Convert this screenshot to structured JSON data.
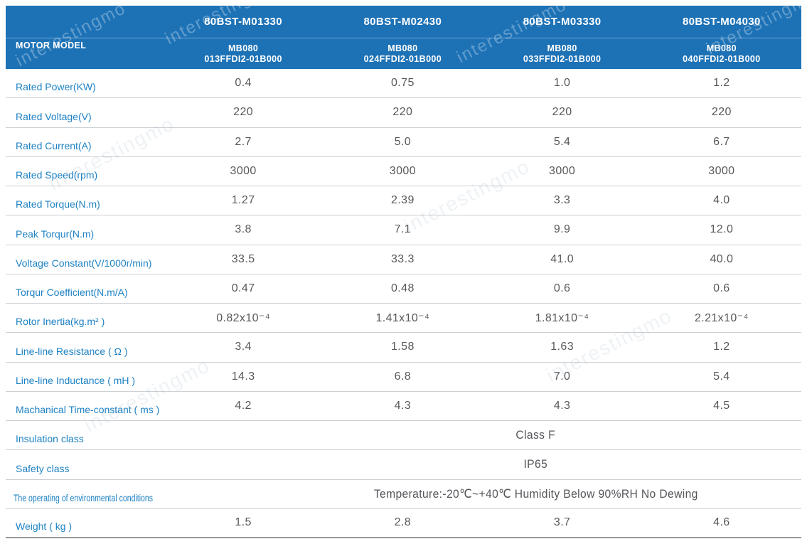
{
  "header": {
    "corner_label": "MOTOR MODEL",
    "models": [
      {
        "name": "80BST-M01330",
        "series": "MB080",
        "code": "013FFDI2-01B000"
      },
      {
        "name": "80BST-M02430",
        "series": "MB080",
        "code": "024FFDI2-01B000"
      },
      {
        "name": "80BST-M03330",
        "series": "MB080",
        "code": "033FFDI2-01B000"
      },
      {
        "name": "80BST-M04030",
        "series": "MB080",
        "code": "040FFDI2-01B000"
      }
    ]
  },
  "rows": [
    {
      "label": "Rated Power(KW)",
      "values": [
        "0.4",
        "0.75",
        "1.0",
        "1.2"
      ]
    },
    {
      "label": "Rated Voltage(V)",
      "values": [
        "220",
        "220",
        "220",
        "220"
      ]
    },
    {
      "label": "Rated Current(A)",
      "values": [
        "2.7",
        "5.0",
        "5.4",
        "6.7"
      ]
    },
    {
      "label": "Rated Speed(rpm)",
      "values": [
        "3000",
        "3000",
        "3000",
        "3000"
      ]
    },
    {
      "label": "Rated Torque(N.m)",
      "values": [
        "1.27",
        "2.39",
        "3.3",
        "4.0"
      ]
    },
    {
      "label": "Peak Torqur(N.m)",
      "values": [
        "3.8",
        "7.1",
        "9.9",
        "12.0"
      ]
    },
    {
      "label": "Voltage Constant(V/1000r/min)",
      "values": [
        "33.5",
        "33.3",
        "41.0",
        "40.0"
      ]
    },
    {
      "label": "Torqur Coefficient(N.m/A)",
      "values": [
        "0.47",
        "0.48",
        "0.6",
        "0.6"
      ]
    },
    {
      "label": "Rotor Inertia(kg.m² )",
      "values": [
        "0.82x10⁻⁴",
        "1.41x10⁻⁴",
        "1.81x10⁻⁴",
        "2.21x10⁻⁴"
      ]
    },
    {
      "label": "Line-line Resistance ( Ω )",
      "values": [
        "3.4",
        "1.58",
        "1.63",
        "1.2"
      ]
    },
    {
      "label": "Line-line Inductance ( mH )",
      "values": [
        "14.3",
        "6.8",
        "7.0",
        "5.4"
      ]
    },
    {
      "label": "Machanical Time-constant ( ms )",
      "values": [
        "4.2",
        "4.3",
        "4.3",
        "4.5"
      ]
    },
    {
      "label": "Insulation class",
      "merged": "Class F"
    },
    {
      "label": "Safety class",
      "merged": "IP65"
    },
    {
      "label": "The operating of environmental conditions",
      "merged": "Temperature:-20℃~+40℃  Humidity Below 90%RH No Dewing",
      "condensed_label": true
    },
    {
      "label": "Weight ( kg )",
      "values": [
        "1.5",
        "2.8",
        "3.7",
        "4.6"
      ]
    }
  ],
  "watermark": {
    "text": "interestingmo"
  },
  "colors": {
    "header_blue": "#1d72b6",
    "label_blue": "#1e82c4",
    "value_gray": "#56585a"
  }
}
